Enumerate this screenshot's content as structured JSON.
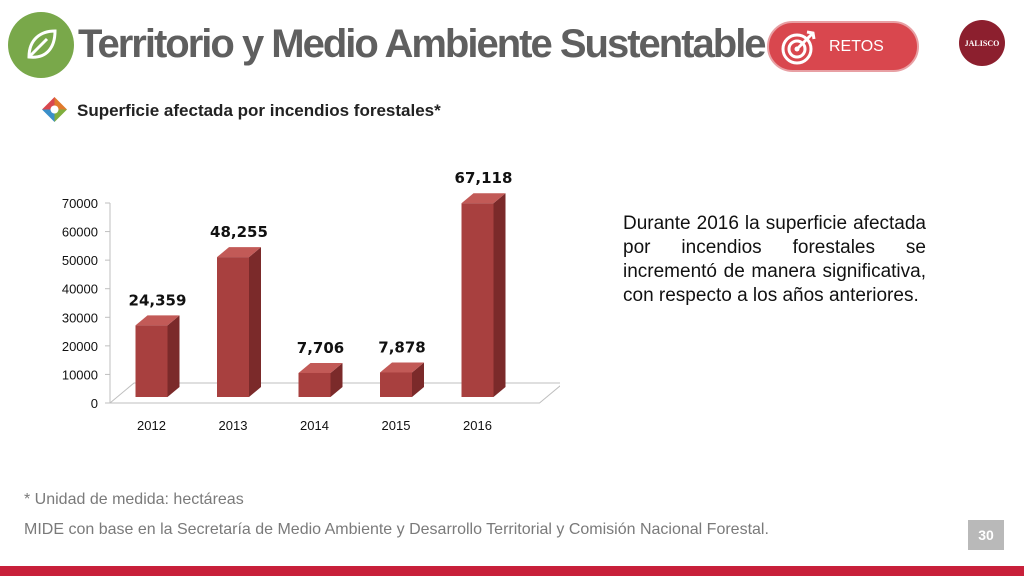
{
  "header": {
    "title": "Territorio y Medio Ambiente Sustentable",
    "retos_label": "RETOS",
    "seal_text": "JALISCO"
  },
  "section": {
    "subtitle": "Superficie afectada por incendios forestales*"
  },
  "chart_data": {
    "type": "bar",
    "title": "",
    "xlabel": "",
    "ylabel": "",
    "categories": [
      "2012",
      "2013",
      "2014",
      "2015",
      "2016"
    ],
    "values": [
      24359,
      48255,
      7706,
      7878,
      67118
    ],
    "value_labels": [
      "24,359",
      "48,255",
      "7,706",
      "7,878",
      "67,118"
    ],
    "ylim": [
      0,
      70000
    ],
    "yticks": [
      0,
      10000,
      20000,
      30000,
      40000,
      50000,
      60000,
      70000
    ],
    "bar_color": "#a8403f",
    "bar_side_color": "#7b2a2a",
    "bar_top_color": "#c25a57",
    "grid": false
  },
  "note": "Durante 2016 la superficie afectada por incendios forestales se incrementó de manera significativa, con respecto a los años anteriores.",
  "footer": {
    "unit_note": "* Unidad de medida: hectáreas",
    "source": "MIDE con base en la Secretaría de Medio Ambiente y Desarrollo Territorial y Comisión Nacional Forestal.",
    "page_number": "30"
  },
  "colors": {
    "brand_red": "#c8203a",
    "leaf_green": "#79a84a",
    "retos_red": "#d9474e"
  }
}
